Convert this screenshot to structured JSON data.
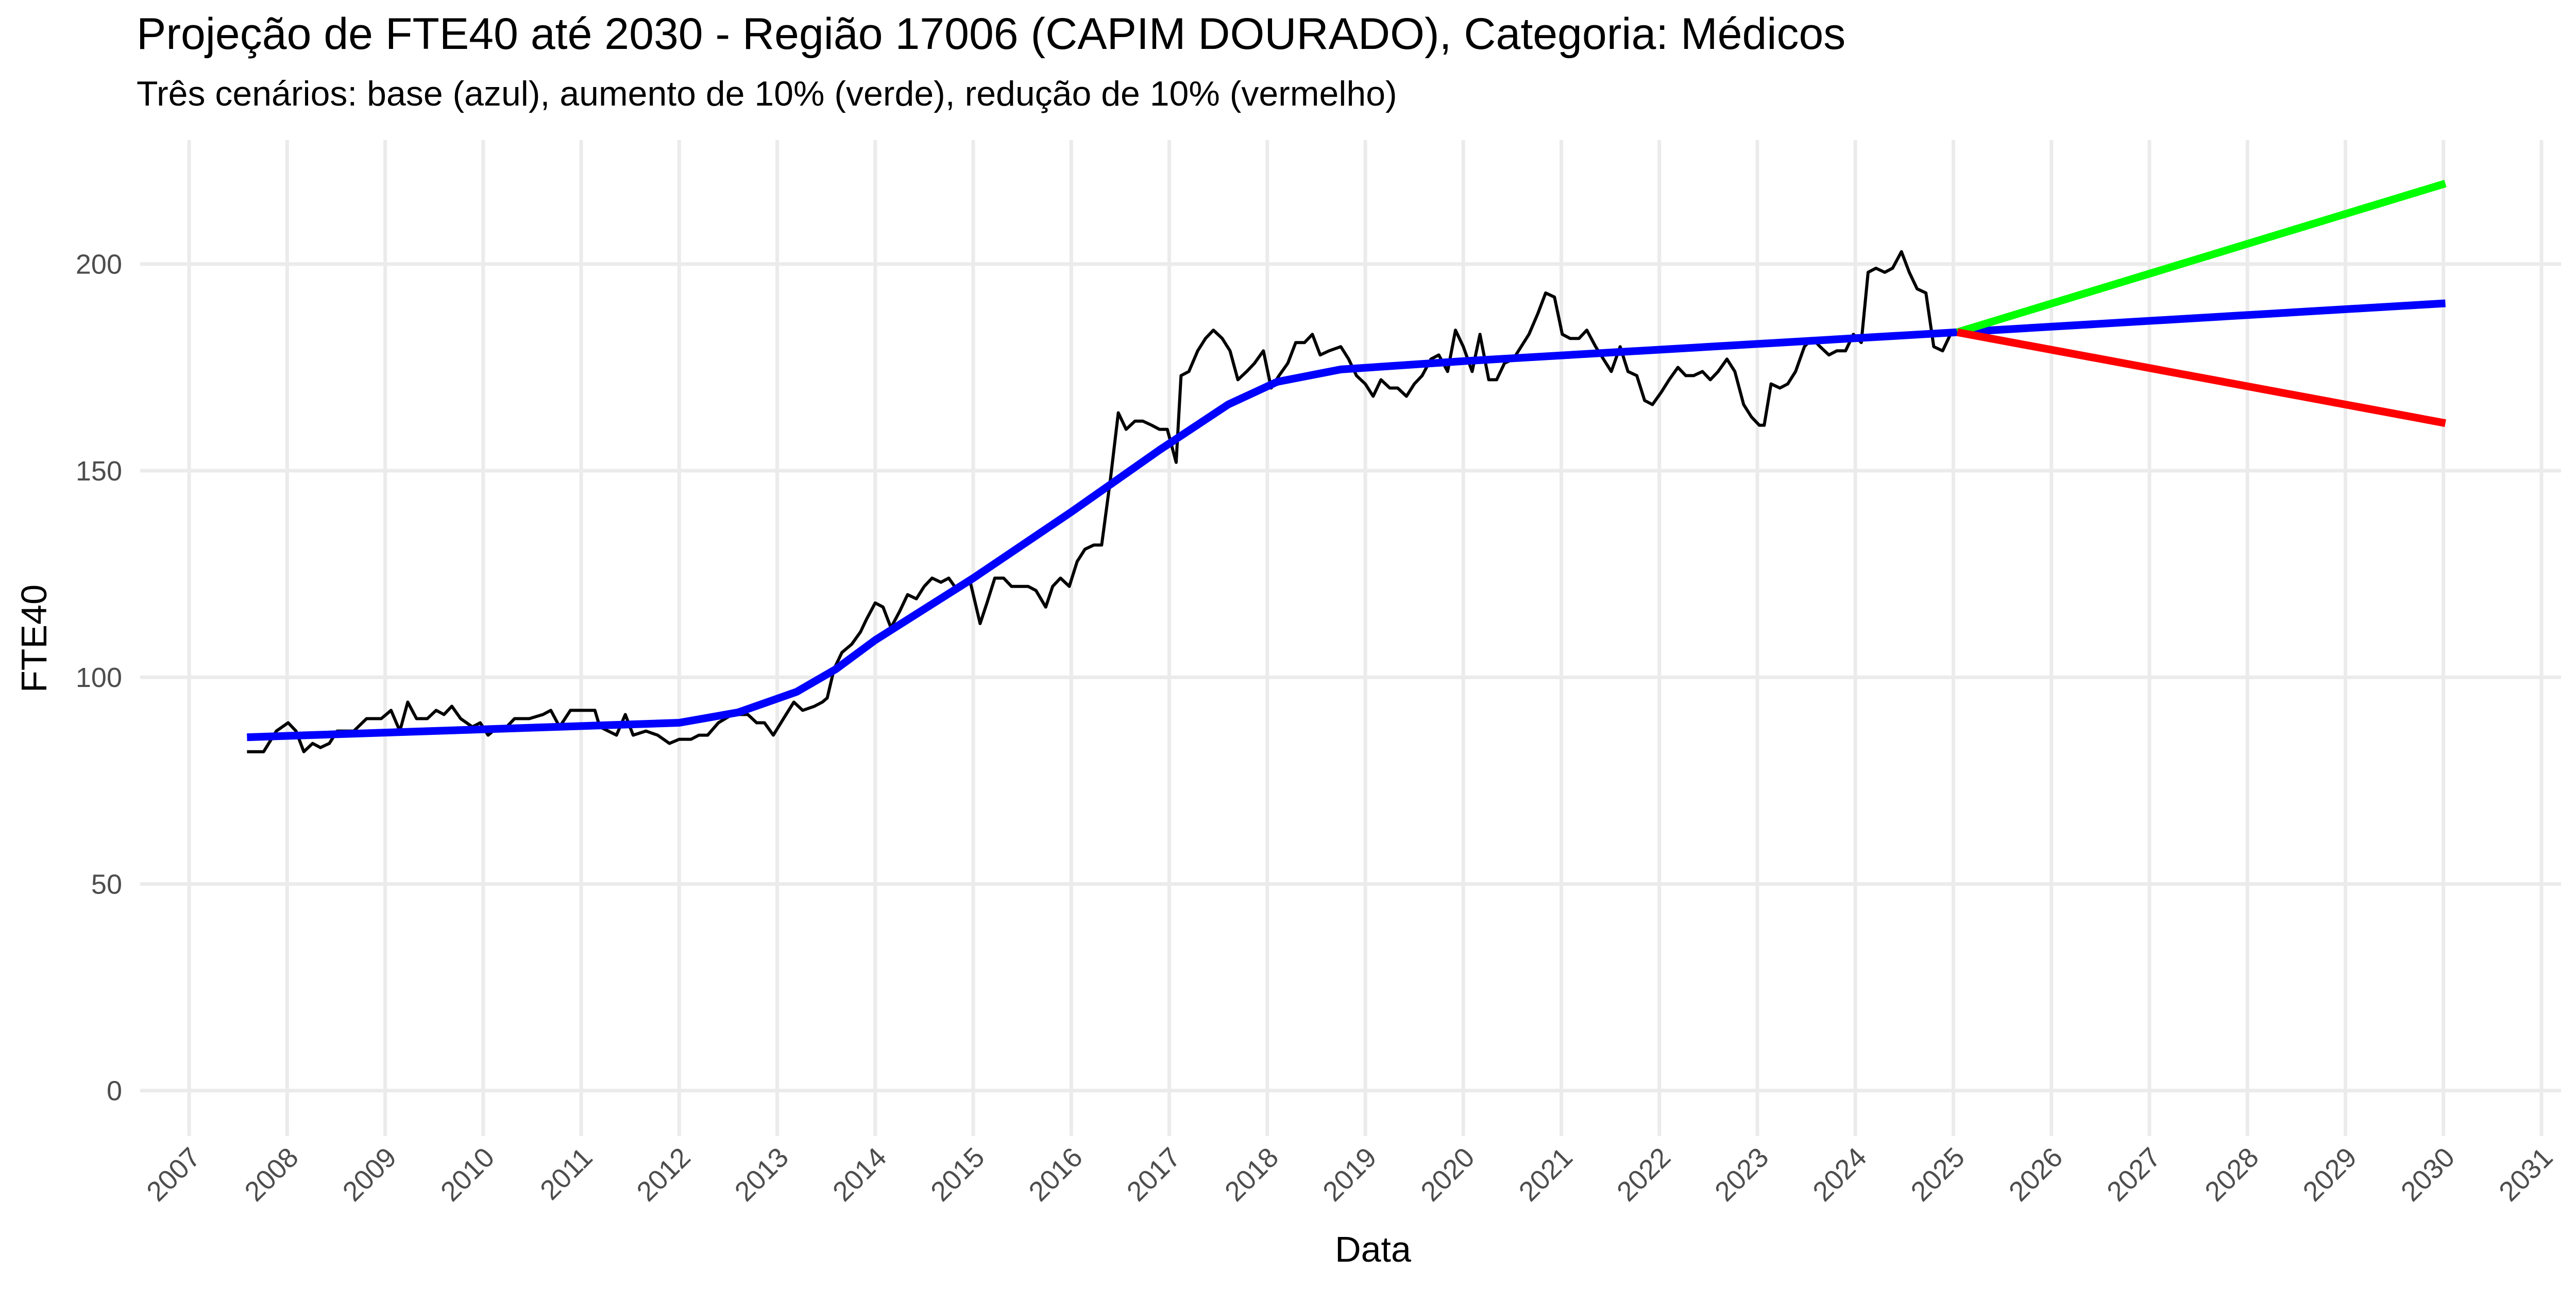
{
  "chart_data": {
    "type": "line",
    "title": "Projeção de FTE40 até 2030 - Região 17006 (CAPIM DOURADO), Categoria: Médicos",
    "subtitle": "Três cenários: base (azul), aumento de 10% (verde), redução de 10% (vermelho)",
    "x_label": "Data",
    "y_label": "FTE40",
    "xlim": [
      2006.5,
      2031.2
    ],
    "ylim": [
      -11,
      230
    ],
    "xticks": [
      2007,
      2008,
      2009,
      2010,
      2011,
      2012,
      2013,
      2014,
      2015,
      2016,
      2017,
      2018,
      2019,
      2020,
      2021,
      2022,
      2023,
      2024,
      2025,
      2026,
      2027,
      2028,
      2029,
      2030,
      2031
    ],
    "yticks": [
      0,
      50,
      100,
      150,
      200
    ],
    "grid": true,
    "series": [
      {
        "color": "#000000",
        "x": [
          2007.59,
          2007.76,
          2007.89,
          2008.01,
          2008.09,
          2008.17,
          2008.26,
          2008.34,
          2008.43,
          2008.51,
          2008.68,
          2008.81,
          2008.96,
          2009.06,
          2009.15,
          2009.23,
          2009.32,
          2009.43,
          2009.52,
          2009.6,
          2009.68,
          2009.77,
          2009.89,
          2009.97,
          2010.05,
          2010.15,
          2010.24,
          2010.32,
          2010.47,
          2010.61,
          2010.69,
          2010.78,
          2010.89,
          2011.14,
          2011.19,
          2011.36,
          2011.45,
          2011.53,
          2011.66,
          2011.78,
          2011.9,
          2012.0,
          2012.12,
          2012.2,
          2012.29,
          2012.4,
          2012.54,
          2012.7,
          2012.79,
          2012.87,
          2012.96,
          2013.09,
          2013.17,
          2013.26,
          2013.38,
          2013.46,
          2013.51,
          2013.58,
          2013.66,
          2013.76,
          2013.85,
          2013.91,
          2014.0,
          2014.08,
          2014.16,
          2014.25,
          2014.33,
          2014.42,
          2014.5,
          2014.58,
          2014.67,
          2014.75,
          2014.84,
          2014.97,
          2015.07,
          2015.14,
          2015.22,
          2015.31,
          2015.39,
          2015.56,
          2015.64,
          2015.74,
          2015.81,
          2015.89,
          2015.98,
          2016.06,
          2016.14,
          2016.23,
          2016.31,
          2016.4,
          2016.48,
          2016.56,
          2016.65,
          2016.73,
          2016.82,
          2016.9,
          2016.98,
          2017.07,
          2017.12,
          2017.2,
          2017.29,
          2017.37,
          2017.45,
          2017.54,
          2017.62,
          2017.7,
          2017.79,
          2017.87,
          2017.96,
          2018.04,
          2018.12,
          2018.21,
          2018.29,
          2018.38,
          2018.46,
          2018.54,
          2018.63,
          2018.75,
          2018.83,
          2018.91,
          2019.0,
          2019.08,
          2019.16,
          2019.25,
          2019.33,
          2019.42,
          2019.5,
          2019.58,
          2019.67,
          2019.75,
          2019.84,
          2019.92,
          2020.0,
          2020.09,
          2020.17,
          2020.26,
          2020.34,
          2020.42,
          2020.51,
          2020.59,
          2020.67,
          2020.76,
          2020.84,
          2020.93,
          2021.01,
          2021.09,
          2021.18,
          2021.26,
          2021.35,
          2021.43,
          2021.51,
          2021.6,
          2021.68,
          2021.77,
          2021.85,
          2021.93,
          2022.02,
          2022.1,
          2022.19,
          2022.27,
          2022.35,
          2022.44,
          2022.52,
          2022.6,
          2022.69,
          2022.77,
          2022.86,
          2022.94,
          2023.02,
          2023.07,
          2023.14,
          2023.23,
          2023.31,
          2023.39,
          2023.48,
          2023.56,
          2023.64,
          2023.73,
          2023.81,
          2023.9,
          2023.98,
          2024.06,
          2024.13,
          2024.21,
          2024.3,
          2024.38,
          2024.47,
          2024.55,
          2024.63,
          2024.72,
          2024.8,
          2024.89,
          2024.97,
          2025.04
        ],
        "values": [
          82,
          82,
          87,
          89,
          87,
          82,
          84,
          83,
          84,
          87,
          87,
          90,
          90,
          92,
          87,
          94,
          90,
          90,
          92,
          91,
          93,
          90,
          88,
          89,
          86,
          88,
          88,
          90,
          90,
          91,
          92,
          88,
          92,
          92,
          88,
          86,
          91,
          86,
          87,
          86,
          84,
          85,
          85,
          86,
          86,
          89,
          91,
          91,
          89,
          89,
          86,
          91,
          94,
          92,
          93,
          94,
          95,
          102,
          106,
          108,
          111,
          114,
          118,
          117,
          112,
          116,
          120,
          119,
          122,
          124,
          123,
          124,
          121,
          123,
          113,
          118,
          124,
          124,
          122,
          122,
          121,
          117,
          122,
          124,
          122,
          128,
          131,
          132,
          132,
          148,
          164,
          160,
          162,
          162,
          161,
          160,
          160,
          152,
          173,
          174,
          179,
          182,
          184,
          182,
          179,
          172,
          174,
          176,
          179,
          170,
          173,
          176,
          181,
          181,
          183,
          178,
          179,
          180,
          177,
          173,
          171,
          168,
          172,
          170,
          170,
          168,
          171,
          173,
          177,
          178,
          174,
          184,
          180,
          174,
          183,
          172,
          172,
          176,
          177,
          180,
          183,
          188,
          193,
          192,
          183,
          182,
          182,
          184,
          180,
          177,
          174,
          180,
          174,
          173,
          167,
          166,
          169,
          172,
          175,
          173,
          173,
          174,
          172,
          174,
          177,
          174,
          166,
          163,
          161,
          161,
          171,
          170,
          171,
          174,
          180,
          182,
          180,
          178,
          179,
          179,
          183,
          181,
          198,
          199,
          198,
          199,
          203,
          198,
          194,
          193,
          180,
          179,
          183,
          184
        ]
      },
      {
        "color": "#0000ff",
        "x": [
          2007.59,
          2012.0,
          2012.6,
          2013.2,
          2013.6,
          2014.0,
          2015.0,
          2016.0,
          2016.9,
          2017.6,
          2018.1,
          2018.75,
          2020.0,
          2025.04,
          2030.02
        ],
        "values": [
          85.5,
          89,
          91.5,
          96.5,
          102,
          109,
          124,
          140,
          155,
          166,
          171.5,
          174.5,
          176.5,
          183.5,
          190.5
        ]
      },
      {
        "color": "#00ff00",
        "x": [
          2025.04,
          2030.02
        ],
        "values": [
          183.5,
          219.5
        ]
      },
      {
        "color": "#ff0000",
        "x": [
          2025.04,
          2030.02
        ],
        "values": [
          183.5,
          161.5
        ]
      }
    ]
  }
}
